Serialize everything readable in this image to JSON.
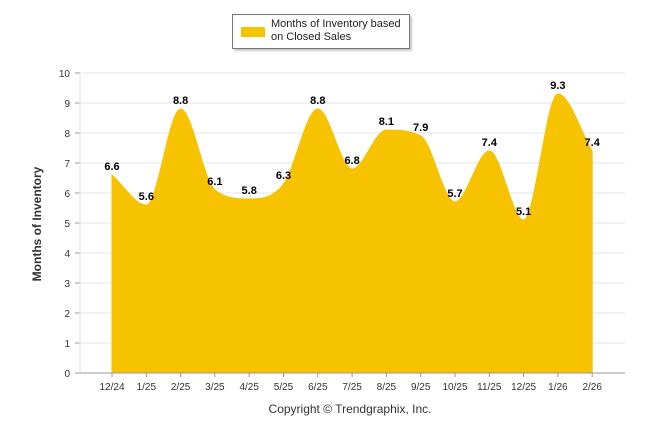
{
  "chart_data": {
    "type": "area",
    "categories": [
      "12/24",
      "1/25",
      "2/25",
      "3/25",
      "4/25",
      "5/25",
      "6/25",
      "7/25",
      "8/25",
      "9/25",
      "10/25",
      "11/25",
      "12/25",
      "1/26",
      "2/26"
    ],
    "series": [
      {
        "name": "Months of Inventory based on Closed Sales",
        "values": [
          6.6,
          5.6,
          8.8,
          6.1,
          5.8,
          6.3,
          8.8,
          6.8,
          8.1,
          7.9,
          5.7,
          7.4,
          5.1,
          9.3,
          7.4
        ],
        "color": "#F7C200"
      }
    ],
    "data_labels": [
      "6.6",
      "5.6",
      "8.8",
      "6.1",
      "5.8",
      "6.3",
      "8.8",
      "6.8",
      "8.1",
      "7.9",
      "5.7",
      "7.4",
      "5.1",
      "9.3",
      "7.4"
    ],
    "ylabel": "Months of Inventory",
    "xlabel": "",
    "ylim": [
      0,
      10
    ],
    "yticks": [
      0,
      1,
      2,
      3,
      4,
      5,
      6,
      7,
      8,
      9,
      10
    ],
    "grid": true,
    "legend": {
      "position": "top-center",
      "label": "Months of Inventory based on Closed Sales"
    },
    "credit": "Copyright © Trendgraphix, Inc."
  }
}
